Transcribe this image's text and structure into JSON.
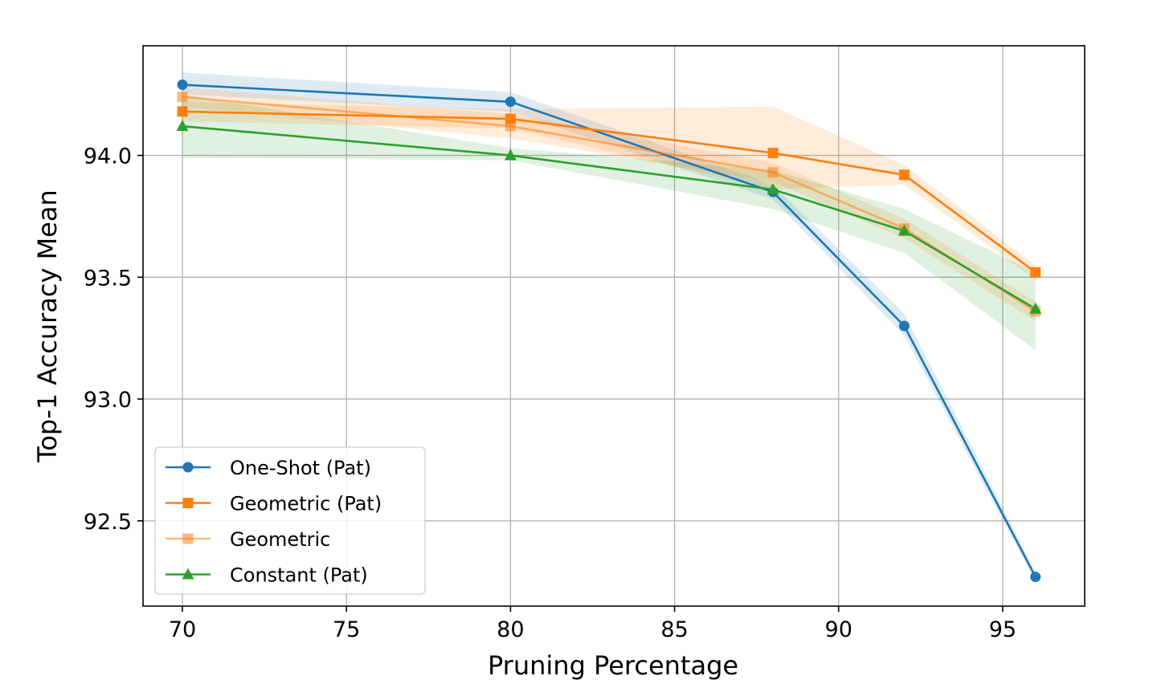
{
  "chart_data": {
    "type": "line",
    "xlabel": "Pruning Percentage",
    "ylabel": "Top-1 Accuracy Mean",
    "xlim": [
      68.8,
      97.5
    ],
    "ylim": [
      92.15,
      94.45
    ],
    "grid": true,
    "legend_position": "lower-left",
    "x": [
      70,
      80,
      88,
      92,
      96
    ],
    "x_ticks": [
      "70",
      "75",
      "80",
      "85",
      "90",
      "95"
    ],
    "x_tick_values": [
      70,
      75,
      80,
      85,
      90,
      95
    ],
    "y_ticks": [
      "92.5",
      "93.0",
      "93.5",
      "94.0"
    ],
    "y_tick_values": [
      92.5,
      93.0,
      93.5,
      94.0
    ],
    "series": [
      {
        "name": "One-Shot (Pat)",
        "marker": "circle",
        "color": "#1f77b4",
        "line_opacity": 1,
        "values": [
          94.29,
          94.22,
          93.85,
          93.3,
          92.27
        ],
        "band_lower": [
          94.25,
          94.18,
          93.82,
          93.26,
          92.25
        ],
        "band_upper": [
          94.34,
          94.26,
          93.88,
          93.35,
          92.29
        ]
      },
      {
        "name": "Geometric (Pat)",
        "marker": "square",
        "color": "#ff7f0e",
        "line_opacity": 1,
        "values": [
          94.18,
          94.15,
          94.01,
          93.92,
          93.52
        ],
        "band_lower": [
          94.14,
          94.11,
          93.86,
          93.88,
          93.49
        ],
        "band_upper": [
          94.22,
          94.19,
          94.2,
          93.96,
          93.55
        ]
      },
      {
        "name": "Geometric",
        "marker": "square",
        "color": "#ff7f0e",
        "line_opacity": 0.55,
        "values": [
          94.24,
          94.12,
          93.93,
          93.7,
          93.36
        ],
        "band_lower": [
          94.2,
          94.07,
          93.89,
          93.66,
          93.32
        ],
        "band_upper": [
          94.28,
          94.17,
          93.97,
          93.74,
          93.4
        ]
      },
      {
        "name": "Constant (Pat)",
        "marker": "triangle",
        "color": "#2ca02c",
        "line_opacity": 1,
        "values": [
          94.12,
          94.0,
          93.86,
          93.69,
          93.37
        ],
        "band_lower": [
          93.99,
          93.98,
          93.78,
          93.6,
          93.2
        ],
        "band_upper": [
          94.25,
          94.03,
          93.94,
          93.78,
          93.52
        ]
      }
    ]
  }
}
